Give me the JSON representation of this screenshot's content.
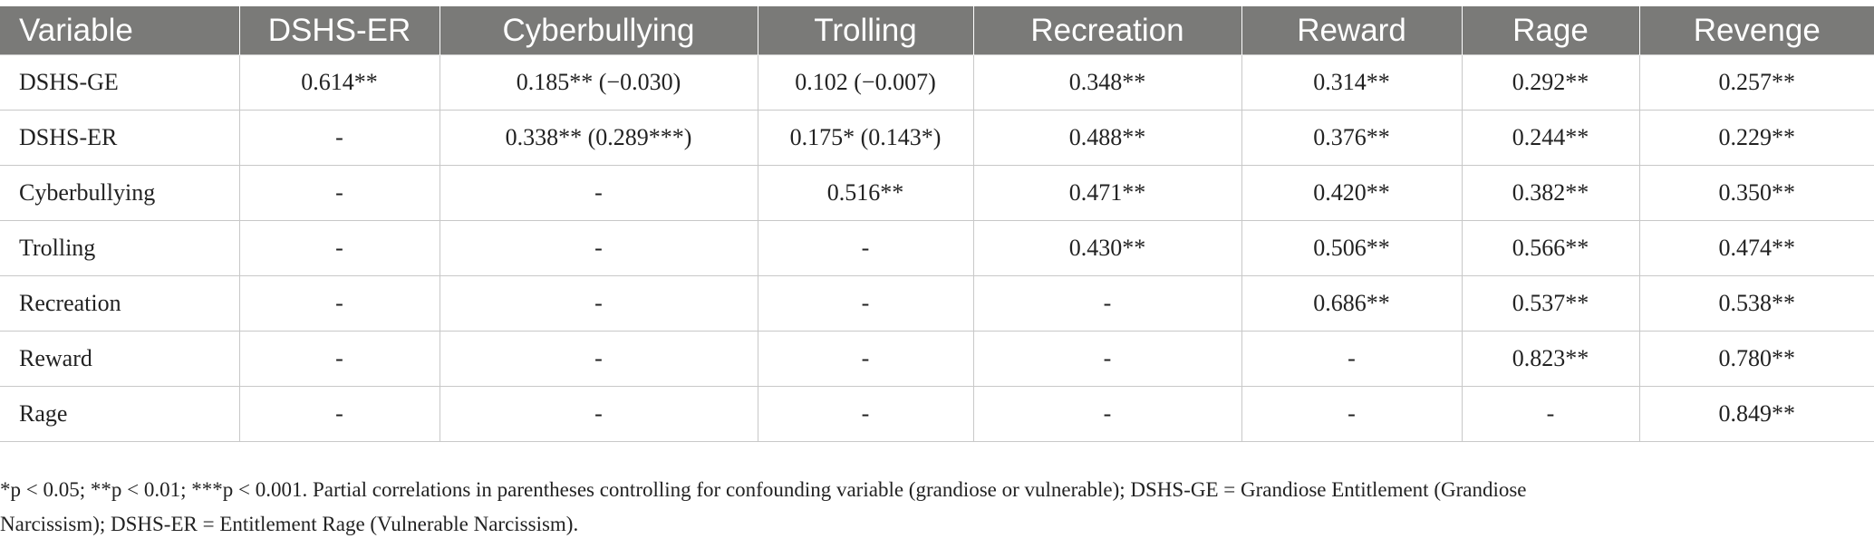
{
  "table": {
    "headers": [
      "Variable",
      "DSHS-ER",
      "Cyberbullying",
      "Trolling",
      "Recreation",
      "Reward",
      "Rage",
      "Revenge"
    ],
    "rows": [
      [
        "DSHS-GE",
        "0.614**",
        "0.185** (−0.030)",
        "0.102 (−0.007)",
        "0.348**",
        "0.314**",
        "0.292**",
        "0.257**"
      ],
      [
        "DSHS-ER",
        "-",
        "0.338** (0.289***)",
        "0.175* (0.143*)",
        "0.488**",
        "0.376**",
        "0.244**",
        "0.229**"
      ],
      [
        "Cyberbullying",
        "-",
        "-",
        "0.516**",
        "0.471**",
        "0.420**",
        "0.382**",
        "0.350**"
      ],
      [
        "Trolling",
        "-",
        "-",
        "-",
        "0.430**",
        "0.506**",
        "0.566**",
        "0.474**"
      ],
      [
        "Recreation",
        "-",
        "-",
        "-",
        "-",
        "0.686**",
        "0.537**",
        "0.538**"
      ],
      [
        "Reward",
        "-",
        "-",
        "-",
        "-",
        "-",
        "0.823**",
        "0.780**"
      ],
      [
        "Rage",
        "-",
        "-",
        "-",
        "-",
        "-",
        "-",
        "0.849**"
      ]
    ]
  },
  "footnote": {
    "line1": "*p < 0.05; **p < 0.01; ***p < 0.001. Partial correlations in parentheses controlling for confounding variable (grandiose or vulnerable); DSHS-GE = Grandiose Entitlement (Grandiose",
    "line2": "Narcissism); DSHS-ER = Entitlement Rage (Vulnerable Narcissism)."
  }
}
